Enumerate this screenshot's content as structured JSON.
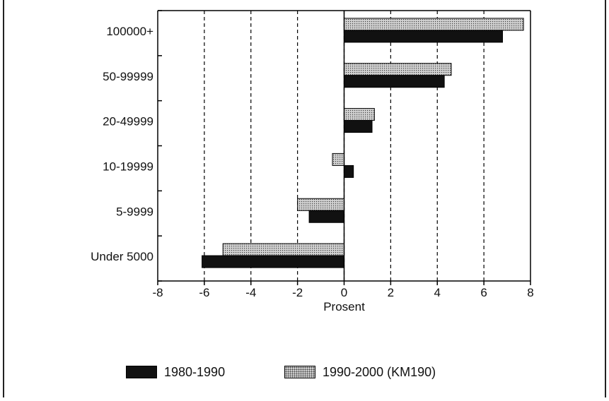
{
  "chart_data": {
    "type": "bar",
    "orientation": "horizontal",
    "categories": [
      "100000+",
      "50-99999",
      "20-49999",
      "10-19999",
      "5-9999",
      "Under 5000"
    ],
    "series": [
      {
        "name": "1980-1990",
        "values": [
          6.8,
          4.3,
          1.2,
          0.4,
          -1.5,
          -6.1
        ],
        "color": "#111111",
        "pattern": "solid"
      },
      {
        "name": "1990-2000 (KM190)",
        "values": [
          7.7,
          4.6,
          1.3,
          -0.5,
          -2.0,
          -5.2
        ],
        "color": "#cfcfcf",
        "pattern": "dotted"
      }
    ],
    "xlabel": "Prosent",
    "xlim": [
      -8,
      8
    ],
    "xticks": [
      -8,
      -6,
      -4,
      -2,
      0,
      2,
      4,
      6,
      8
    ],
    "grid": "vertical dashed",
    "legend_position": "bottom"
  },
  "legend": {
    "items": [
      {
        "label": "1980-1990"
      },
      {
        "label": "1990-2000 (KM190)"
      }
    ]
  }
}
